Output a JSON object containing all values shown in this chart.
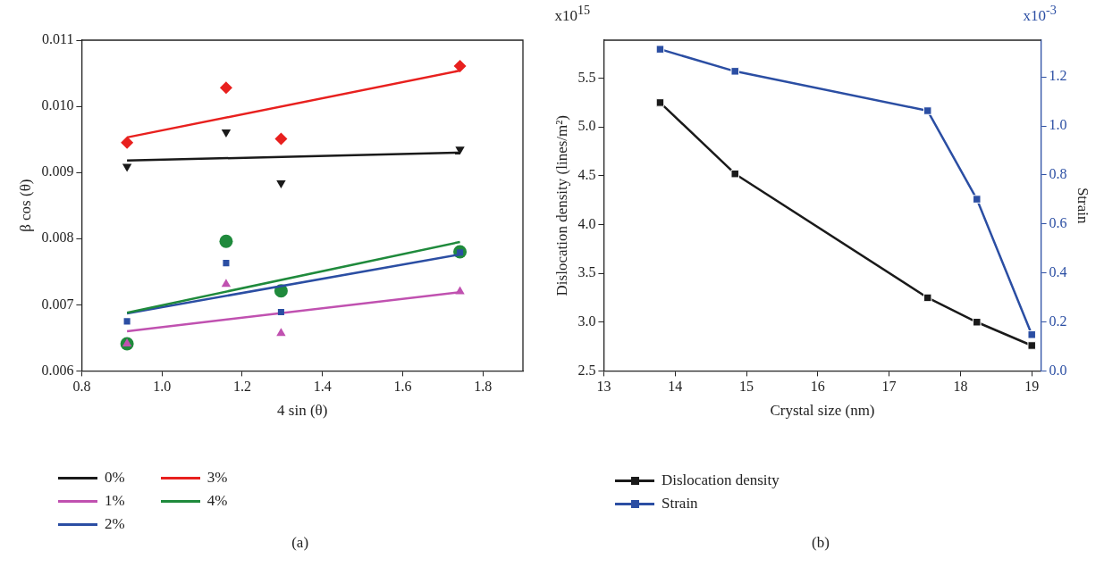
{
  "chart_data": [
    {
      "type": "scatter",
      "xlabel": "4 sin (θ)",
      "ylabel": "β cos (θ)",
      "xlim": [
        0.8,
        1.9
      ],
      "ylim": [
        0.006,
        0.011
      ],
      "xticks": [
        0.8,
        {
          "value": 1.0,
          "label": "1.0"
        },
        1.2,
        1.4,
        1.6,
        1.8
      ],
      "yticks": [
        0.006,
        0.007,
        0.008,
        0.009,
        {
          "value": 0.01,
          "label": "0.010"
        },
        0.011
      ],
      "grid": false,
      "legend": "bottom",
      "annotations": [
        "(a)"
      ],
      "series": [
        {
          "type": "line",
          "name": "0%",
          "color": "#1a1a1a",
          "x": [
            0.913,
            1.743
          ],
          "values": [
            0.00918,
            0.0093
          ],
          "marker": "none"
        },
        {
          "type": "line",
          "name": "1%",
          "color": "#c051b0",
          "x": [
            0.913,
            1.743
          ],
          "values": [
            0.0066,
            0.00719
          ],
          "marker": "none"
        },
        {
          "type": "line",
          "name": "2%",
          "color": "#2b4ea3",
          "x": [
            0.913,
            1.743
          ],
          "values": [
            0.00687,
            0.00776
          ],
          "marker": "none"
        },
        {
          "type": "line",
          "name": "3%",
          "color": "#e8201e",
          "x": [
            0.913,
            1.743
          ],
          "values": [
            0.00953,
            0.01054
          ],
          "marker": "none"
        },
        {
          "type": "line",
          "name": "4%",
          "color": "#1f8a3c",
          "x": [
            0.913,
            1.743
          ],
          "values": [
            0.00688,
            0.00795
          ],
          "marker": "none"
        },
        {
          "color": "#1a1a1a",
          "x": [
            0.913,
            1.16,
            1.297,
            1.743
          ],
          "values": [
            0.00909,
            0.00961,
            0.00884,
            0.00935
          ],
          "marker": "triangle-down"
        },
        {
          "color": "#c051b0",
          "x": [
            0.913,
            1.16,
            1.297,
            1.743
          ],
          "values": [
            0.00641,
            0.00731,
            0.00657,
            0.0072
          ],
          "marker": "triangle"
        },
        {
          "color": "#2b4ea3",
          "x": [
            0.913,
            1.16,
            1.297,
            1.743
          ],
          "values": [
            0.00675,
            0.00763,
            0.00689,
            0.00779
          ],
          "marker": "square"
        },
        {
          "color": "#e8201e",
          "x": [
            0.913,
            1.16,
            1.297,
            1.743
          ],
          "values": [
            0.00945,
            0.01028,
            0.00951,
            0.01061
          ],
          "marker": "diamond"
        },
        {
          "color": "#1f8a3c",
          "x": [
            0.913,
            1.16,
            1.297,
            1.743
          ],
          "values": [
            0.00641,
            0.00796,
            0.00721,
            0.0078
          ],
          "marker": "circle"
        }
      ]
    },
    {
      "type": "line",
      "xlabel": "Crystal size (nm)",
      "ylabel": "Dislocation density (lines/m²)",
      "y2label": "Strain",
      "x": [
        13.79,
        14.84,
        17.54,
        18.23,
        19.0
      ],
      "xlim": [
        13,
        19.13
      ],
      "xticks": [
        13,
        14,
        15,
        16,
        17,
        18,
        19
      ],
      "ylim": [
        2.5,
        5.89
      ],
      "yticks": [
        2.5,
        {
          "value": 3.0,
          "label": "3.0"
        },
        3.5,
        {
          "value": 4.0,
          "label": "4.0"
        },
        4.5,
        {
          "value": 5.0,
          "label": "5.0"
        },
        5.5
      ],
      "y2lim": [
        0,
        1.35
      ],
      "y2ticks": [
        {
          "value": 0,
          "label": "0.0"
        },
        0.2,
        0.4,
        0.6,
        0.8,
        {
          "value": 1.0,
          "label": "1.0"
        },
        1.2
      ],
      "grid": false,
      "legend": "bottom",
      "marker": "square",
      "line_style": "solid",
      "annotations": [
        "x10$^{15}$",
        "x10$^{-3}$",
        "(b)"
      ],
      "series": [
        {
          "name": "Dislocation density",
          "color": "#1a1a1a",
          "values": [
            5.25,
            4.52,
            3.25,
            3.0,
            2.76
          ]
        },
        {
          "name": "Strain",
          "color": "#2b4ea3",
          "values": [
            1.313,
            1.223,
            1.062,
            0.701,
            0.148
          ],
          "axis": "y2"
        }
      ]
    }
  ]
}
